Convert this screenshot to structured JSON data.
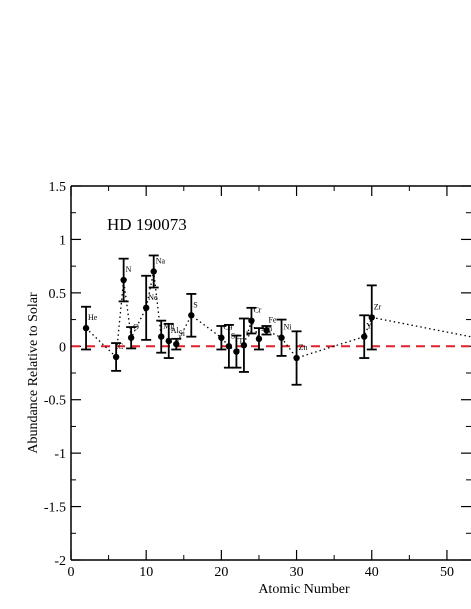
{
  "chart_data": {
    "type": "scatter",
    "annotation": "HD 190073",
    "xlabel": "Atomic Number",
    "ylabel": "Abundance Relative to Solar",
    "xlim": [
      0,
      53.2
    ],
    "ylim": [
      -2,
      1.5
    ],
    "xticks": [
      0,
      10,
      20,
      30,
      40,
      50
    ],
    "yticks": [
      -2,
      -1.5,
      -1,
      -0.5,
      0,
      0.5,
      1,
      1.5
    ],
    "reference_line": {
      "y": 0,
      "style": "dashed",
      "color": "#e0202a"
    },
    "connector_style": "dotted",
    "grid": false,
    "series": [
      {
        "points": [
          {
            "x": 2,
            "y": 0.17,
            "err": 0.2,
            "label": "He"
          },
          {
            "x": 6,
            "y": -0.1,
            "err": 0.13,
            "label": "C"
          },
          {
            "x": 7,
            "y": 0.62,
            "err": 0.2,
            "label": "N"
          },
          {
            "x": 8,
            "y": 0.08,
            "err": 0.1,
            "label": "O"
          },
          {
            "x": 10,
            "y": 0.36,
            "err": 0.3,
            "label": "Ne"
          },
          {
            "x": 11,
            "y": 0.7,
            "err": 0.15,
            "label": "Na"
          },
          {
            "x": 12,
            "y": 0.09,
            "err": 0.15,
            "label": "Mg"
          },
          {
            "x": 13,
            "y": 0.05,
            "err": 0.16,
            "label": "Al"
          },
          {
            "x": 14,
            "y": 0.02,
            "err": 0.05,
            "label": "Si"
          },
          {
            "x": 16,
            "y": 0.29,
            "err": 0.2,
            "label": "S"
          },
          {
            "x": 20,
            "y": 0.08,
            "err": 0.11,
            "label": "Ca"
          },
          {
            "x": 21,
            "y": 0.0,
            "err": 0.2,
            "label": "Sc"
          },
          {
            "x": 22,
            "y": -0.05,
            "err": 0.15,
            "label": "Ti"
          },
          {
            "x": 23,
            "y": 0.01,
            "err": 0.25,
            "label": "V"
          },
          {
            "x": 24,
            "y": 0.24,
            "err": 0.12,
            "label": "Cr"
          },
          {
            "x": 25,
            "y": 0.07,
            "err": 0.1,
            "label": "Mn"
          },
          {
            "x": 26,
            "y": 0.15,
            "err": 0.04,
            "label": "Fe"
          },
          {
            "x": 28,
            "y": 0.08,
            "err": 0.17,
            "label": "Ni"
          },
          {
            "x": 30,
            "y": -0.11,
            "err": 0.25,
            "label": "Zn"
          },
          {
            "x": 39,
            "y": 0.09,
            "err": 0.2,
            "label": "Y"
          },
          {
            "x": 40,
            "y": 0.27,
            "err": 0.3,
            "label": "Zr"
          },
          {
            "x": 56,
            "y": 0.05,
            "err": 0.0,
            "label": ""
          }
        ]
      }
    ]
  }
}
